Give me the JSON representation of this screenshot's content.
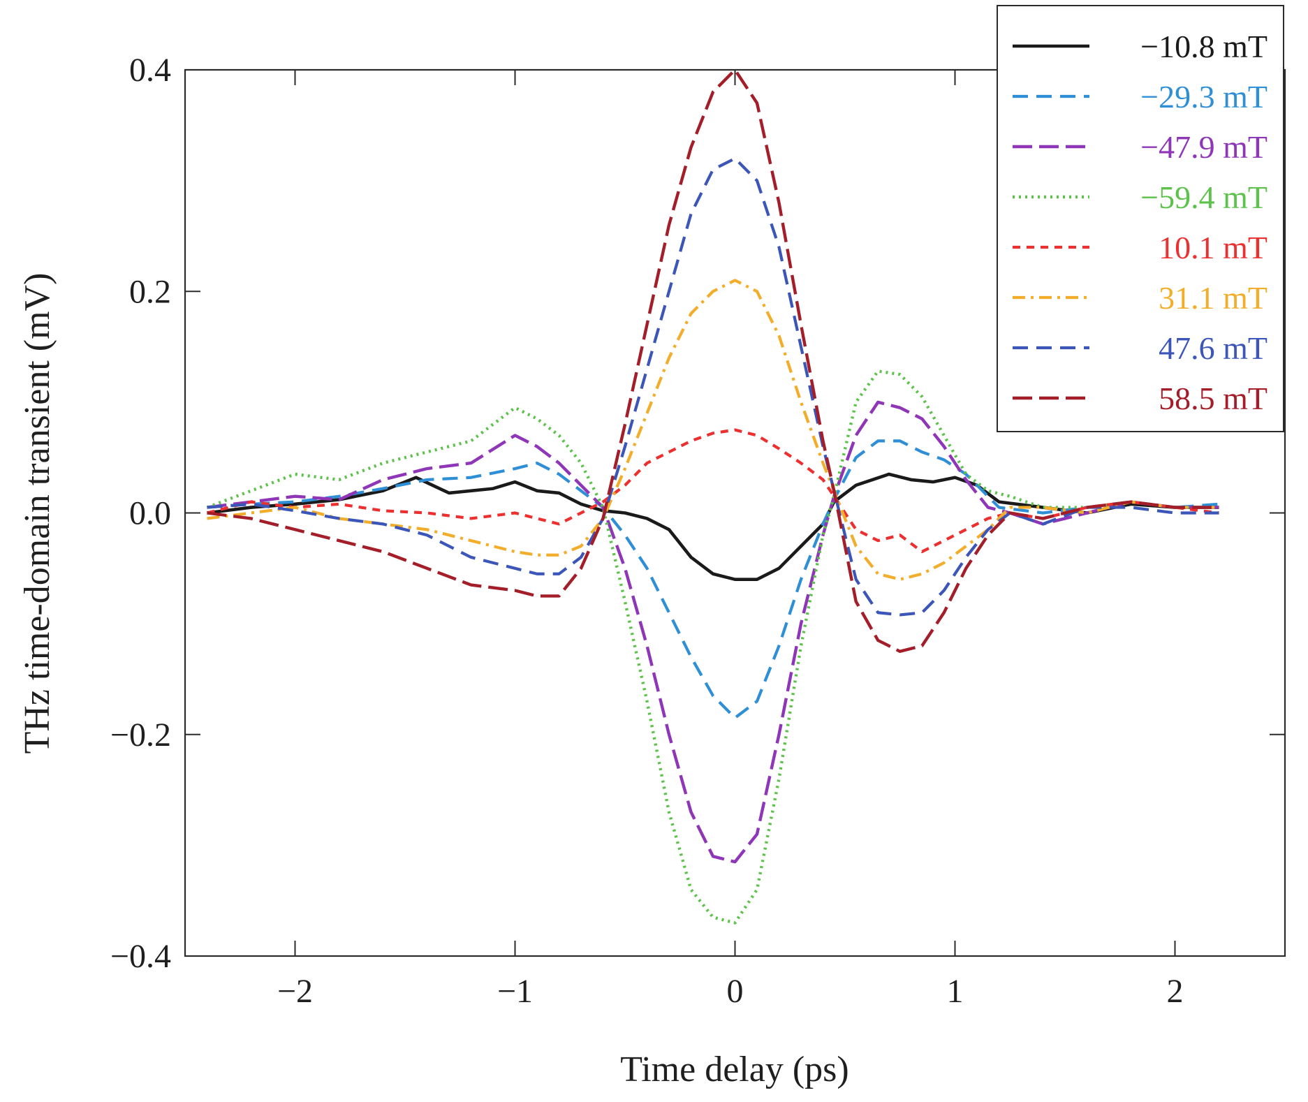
{
  "chart_data": {
    "type": "line",
    "title": "",
    "xlabel": "Time delay (ps)",
    "ylabel": "THz time-domain transient (mV)",
    "xlim": [
      -2.5,
      2.5
    ],
    "ylim": [
      -0.4,
      0.4
    ],
    "x_ticks": [
      -2,
      -1,
      0,
      1,
      2
    ],
    "x_tick_labels": [
      "−2",
      "−1",
      "0",
      "1",
      "2"
    ],
    "y_ticks": [
      -0.4,
      -0.2,
      0.0,
      0.2,
      0.4
    ],
    "y_tick_labels": [
      "−0.4",
      "−0.2",
      "0.0",
      "0.2",
      "0.4"
    ],
    "grid": false,
    "legend_position": "top-right",
    "series": [
      {
        "name": "−10.8 mT",
        "color": "#1a1a1a",
        "style": "solid",
        "x": [
          -2.4,
          -2.2,
          -2.0,
          -1.8,
          -1.6,
          -1.45,
          -1.3,
          -1.1,
          -1.0,
          -0.9,
          -0.8,
          -0.7,
          -0.6,
          -0.5,
          -0.4,
          -0.3,
          -0.2,
          -0.1,
          0.0,
          0.1,
          0.2,
          0.3,
          0.4,
          0.45,
          0.55,
          0.7,
          0.8,
          0.9,
          1.0,
          1.1,
          1.2,
          1.4,
          1.6,
          1.8,
          2.0,
          2.2
        ],
        "y": [
          0.0,
          0.005,
          0.008,
          0.012,
          0.02,
          0.032,
          0.018,
          0.022,
          0.028,
          0.02,
          0.018,
          0.008,
          0.002,
          0.0,
          -0.005,
          -0.015,
          -0.04,
          -0.055,
          -0.06,
          -0.06,
          -0.05,
          -0.03,
          -0.01,
          0.01,
          0.025,
          0.035,
          0.03,
          0.028,
          0.032,
          0.025,
          0.01,
          0.005,
          0.0,
          0.008,
          0.005,
          0.005
        ]
      },
      {
        "name": "−29.3 mT",
        "color": "#2f8fd6",
        "style": "dash",
        "x": [
          -2.4,
          -2.2,
          -2.0,
          -1.8,
          -1.6,
          -1.4,
          -1.2,
          -1.0,
          -0.9,
          -0.8,
          -0.7,
          -0.6,
          -0.5,
          -0.4,
          -0.3,
          -0.2,
          -0.1,
          0.0,
          0.1,
          0.2,
          0.3,
          0.4,
          0.45,
          0.55,
          0.65,
          0.75,
          0.85,
          0.95,
          1.05,
          1.15,
          1.2,
          1.4,
          1.6,
          1.8,
          2.0,
          2.2
        ],
        "y": [
          0.005,
          0.008,
          0.01,
          0.015,
          0.022,
          0.03,
          0.032,
          0.04,
          0.045,
          0.035,
          0.02,
          0.005,
          -0.02,
          -0.05,
          -0.09,
          -0.13,
          -0.165,
          -0.185,
          -0.17,
          -0.12,
          -0.06,
          -0.01,
          0.012,
          0.05,
          0.065,
          0.065,
          0.055,
          0.048,
          0.035,
          0.015,
          0.005,
          0.0,
          0.005,
          0.01,
          0.005,
          0.008
        ]
      },
      {
        "name": "−47.9 mT",
        "color": "#8e35b8",
        "style": "longdash",
        "x": [
          -2.4,
          -2.2,
          -2.0,
          -1.8,
          -1.6,
          -1.4,
          -1.2,
          -1.0,
          -0.9,
          -0.8,
          -0.7,
          -0.6,
          -0.5,
          -0.4,
          -0.3,
          -0.2,
          -0.1,
          0.0,
          0.1,
          0.2,
          0.3,
          0.4,
          0.45,
          0.55,
          0.65,
          0.75,
          0.85,
          0.95,
          1.05,
          1.15,
          1.25,
          1.4,
          1.6,
          1.8,
          2.0,
          2.2
        ],
        "y": [
          0.005,
          0.01,
          0.015,
          0.012,
          0.03,
          0.04,
          0.045,
          0.07,
          0.06,
          0.045,
          0.025,
          0.005,
          -0.05,
          -0.12,
          -0.2,
          -0.27,
          -0.31,
          -0.315,
          -0.29,
          -0.2,
          -0.1,
          -0.02,
          0.015,
          0.07,
          0.1,
          0.095,
          0.085,
          0.06,
          0.03,
          0.005,
          0.0,
          -0.01,
          0.0,
          0.01,
          0.005,
          0.005
        ]
      },
      {
        "name": "−59.4 mT",
        "color": "#5cc24a",
        "style": "dot",
        "x": [
          -2.4,
          -2.2,
          -2.0,
          -1.8,
          -1.6,
          -1.4,
          -1.2,
          -1.0,
          -0.9,
          -0.8,
          -0.7,
          -0.6,
          -0.5,
          -0.4,
          -0.3,
          -0.2,
          -0.1,
          0.0,
          0.1,
          0.2,
          0.3,
          0.4,
          0.45,
          0.55,
          0.65,
          0.75,
          0.85,
          0.95,
          1.05,
          1.15,
          1.25,
          1.4,
          1.6,
          1.8,
          2.0,
          2.2
        ],
        "y": [
          0.005,
          0.02,
          0.035,
          0.03,
          0.045,
          0.055,
          0.065,
          0.095,
          0.085,
          0.07,
          0.045,
          0.005,
          -0.08,
          -0.17,
          -0.27,
          -0.34,
          -0.365,
          -0.37,
          -0.34,
          -0.24,
          -0.12,
          -0.02,
          0.015,
          0.1,
          0.128,
          0.125,
          0.105,
          0.07,
          0.035,
          0.02,
          0.015,
          0.005,
          0.005,
          0.01,
          0.005,
          0.005
        ]
      },
      {
        "name": "10.1 mT",
        "color": "#ec2f2f",
        "style": "shortdash",
        "x": [
          -2.4,
          -2.2,
          -2.0,
          -1.8,
          -1.6,
          -1.4,
          -1.2,
          -1.0,
          -0.9,
          -0.8,
          -0.7,
          -0.6,
          -0.5,
          -0.4,
          -0.3,
          -0.2,
          -0.1,
          0.0,
          0.1,
          0.2,
          0.3,
          0.4,
          0.45,
          0.55,
          0.65,
          0.75,
          0.85,
          0.95,
          1.05,
          1.15,
          1.25,
          1.4,
          1.6,
          1.8,
          2.0,
          2.2
        ],
        "y": [
          0.0,
          0.01,
          0.005,
          0.008,
          0.002,
          0.0,
          -0.005,
          0.0,
          -0.005,
          -0.01,
          0.0,
          0.01,
          0.025,
          0.045,
          0.055,
          0.065,
          0.072,
          0.075,
          0.07,
          0.058,
          0.045,
          0.03,
          0.015,
          -0.015,
          -0.025,
          -0.02,
          -0.035,
          -0.025,
          -0.015,
          -0.005,
          0.0,
          -0.005,
          0.005,
          0.01,
          0.005,
          0.0
        ]
      },
      {
        "name": "31.1 mT",
        "color": "#f2ad2a",
        "style": "dashdot",
        "x": [
          -2.4,
          -2.2,
          -2.0,
          -1.8,
          -1.6,
          -1.4,
          -1.2,
          -1.0,
          -0.9,
          -0.8,
          -0.7,
          -0.6,
          -0.5,
          -0.4,
          -0.3,
          -0.2,
          -0.1,
          0.0,
          0.1,
          0.2,
          0.3,
          0.4,
          0.45,
          0.55,
          0.65,
          0.75,
          0.85,
          0.95,
          1.05,
          1.15,
          1.25,
          1.4,
          1.6,
          1.8,
          2.0,
          2.2
        ],
        "y": [
          -0.005,
          0.0,
          0.005,
          -0.005,
          -0.01,
          -0.015,
          -0.025,
          -0.035,
          -0.038,
          -0.038,
          -0.03,
          -0.005,
          0.04,
          0.09,
          0.14,
          0.18,
          0.2,
          0.21,
          0.2,
          0.16,
          0.1,
          0.045,
          0.02,
          -0.03,
          -0.055,
          -0.06,
          -0.055,
          -0.045,
          -0.03,
          -0.015,
          0.005,
          0.005,
          0.0,
          0.01,
          0.005,
          0.005
        ]
      },
      {
        "name": "47.6 mT",
        "color": "#3b56b8",
        "style": "dash",
        "x": [
          -2.4,
          -2.2,
          -2.0,
          -1.8,
          -1.6,
          -1.4,
          -1.2,
          -1.0,
          -0.9,
          -0.8,
          -0.7,
          -0.6,
          -0.5,
          -0.4,
          -0.3,
          -0.2,
          -0.1,
          0.0,
          0.1,
          0.2,
          0.3,
          0.4,
          0.45,
          0.55,
          0.65,
          0.75,
          0.85,
          0.95,
          1.05,
          1.15,
          1.25,
          1.4,
          1.6,
          1.8,
          2.0,
          2.2
        ],
        "y": [
          0.005,
          0.008,
          0.002,
          -0.005,
          -0.01,
          -0.02,
          -0.04,
          -0.05,
          -0.055,
          -0.055,
          -0.04,
          -0.005,
          0.06,
          0.13,
          0.2,
          0.27,
          0.31,
          0.32,
          0.3,
          0.24,
          0.15,
          0.06,
          0.02,
          -0.06,
          -0.09,
          -0.092,
          -0.09,
          -0.07,
          -0.04,
          -0.015,
          0.0,
          -0.01,
          0.005,
          0.005,
          0.0,
          0.0
        ]
      },
      {
        "name": "58.5 mT",
        "color": "#a41e2a",
        "style": "longdash",
        "x": [
          -2.4,
          -2.2,
          -2.0,
          -1.8,
          -1.6,
          -1.4,
          -1.2,
          -1.0,
          -0.9,
          -0.8,
          -0.7,
          -0.6,
          -0.5,
          -0.4,
          -0.3,
          -0.2,
          -0.1,
          0.0,
          0.1,
          0.2,
          0.3,
          0.4,
          0.45,
          0.55,
          0.65,
          0.75,
          0.85,
          0.95,
          1.05,
          1.15,
          1.25,
          1.4,
          1.6,
          1.8,
          2.0,
          2.2
        ],
        "y": [
          0.0,
          -0.005,
          -0.015,
          -0.025,
          -0.035,
          -0.05,
          -0.065,
          -0.07,
          -0.075,
          -0.075,
          -0.05,
          -0.005,
          0.08,
          0.17,
          0.26,
          0.33,
          0.38,
          0.4,
          0.37,
          0.28,
          0.17,
          0.065,
          0.02,
          -0.08,
          -0.115,
          -0.125,
          -0.12,
          -0.09,
          -0.05,
          -0.02,
          0.0,
          -0.005,
          0.005,
          0.01,
          0.005,
          0.005
        ]
      }
    ]
  }
}
